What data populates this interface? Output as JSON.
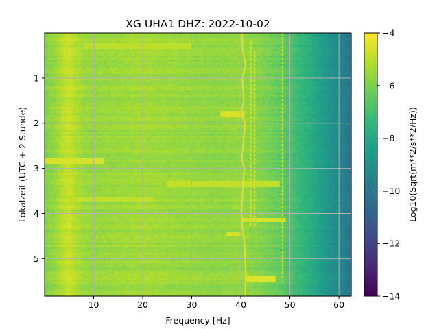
{
  "chart_data": {
    "type": "heatmap",
    "title": "XG UHA1  DHZ: 2022-10-02",
    "xlabel": "Frequency [Hz]",
    "ylabel": "Lokalzeit (UTC + 2 Stunde)",
    "xlim": [
      0,
      62.5
    ],
    "ylim": [
      0,
      5.83
    ],
    "y_inverted": true,
    "x_ticks": [
      10,
      20,
      30,
      40,
      50,
      60
    ],
    "y_ticks": [
      1,
      2,
      3,
      4,
      5
    ],
    "grid": true,
    "colormap": "viridis",
    "colorbar": {
      "label": "Log10(Sqrt(m**2/s**2/Hz))",
      "range": [
        -14,
        -4
      ],
      "ticks": [
        -4,
        -6,
        -8,
        -10,
        -12,
        -14
      ]
    },
    "background_profile": {
      "frequency_hz": [
        0,
        2,
        3,
        4,
        5,
        6,
        8,
        10,
        15,
        20,
        25,
        30,
        35,
        40,
        43,
        45,
        48,
        50,
        52,
        55,
        58,
        60,
        62.5
      ],
      "log_psd": [
        -5.9,
        -5.6,
        -5.3,
        -5.0,
        -4.8,
        -5.1,
        -5.5,
        -5.6,
        -5.5,
        -5.4,
        -5.5,
        -5.6,
        -5.7,
        -5.6,
        -5.8,
        -6.0,
        -6.4,
        -6.8,
        -7.3,
        -8.0,
        -8.8,
        -9.3,
        -10.2
      ]
    },
    "features": {
      "wandering_line": {
        "time_h": [
          0.0,
          0.4,
          0.7,
          1.0,
          1.5,
          1.8,
          2.0,
          2.4,
          2.8,
          3.0,
          3.5,
          4.0,
          4.3,
          4.6,
          5.0,
          5.3,
          5.83
        ],
        "frequency_hz": [
          40.2,
          40.4,
          41.0,
          40.3,
          40.6,
          40.0,
          40.9,
          40.5,
          40.2,
          40.7,
          40.4,
          40.1,
          40.3,
          40.7,
          40.9,
          41.0,
          40.9
        ],
        "log_psd": -4.6
      },
      "steady_lines": [
        {
          "frequency_hz": 42.0,
          "time_h": [
            0.2,
            4.3
          ],
          "log_psd": -4.6
        },
        {
          "frequency_hz": 42.8,
          "time_h": [
            0.4,
            4.3
          ],
          "log_psd": -4.7
        },
        {
          "frequency_hz": 48.5,
          "time_h": [
            0.0,
            5.5
          ],
          "log_psd": -5.0
        }
      ],
      "broadband_bursts": [
        {
          "time_h": 0.3,
          "frequency_hz": [
            8,
            30
          ],
          "log_psd": -5.0
        },
        {
          "time_h": 1.8,
          "frequency_hz": [
            36,
            41
          ],
          "log_psd": -4.6
        },
        {
          "time_h": 2.85,
          "frequency_hz": [
            0,
            12
          ],
          "log_psd": -4.6
        },
        {
          "time_h": 3.35,
          "frequency_hz": [
            25,
            48
          ],
          "log_psd": -4.9
        },
        {
          "time_h": 3.7,
          "frequency_hz": [
            5,
            22
          ],
          "log_psd": -4.9
        },
        {
          "time_h": 4.15,
          "frequency_hz": [
            40,
            49
          ],
          "log_psd": -4.6
        },
        {
          "time_h": 4.45,
          "frequency_hz": [
            37,
            40
          ],
          "log_psd": -4.6
        },
        {
          "time_h": 5.45,
          "frequency_hz": [
            41,
            47
          ],
          "log_psd": -4.5
        }
      ]
    }
  }
}
